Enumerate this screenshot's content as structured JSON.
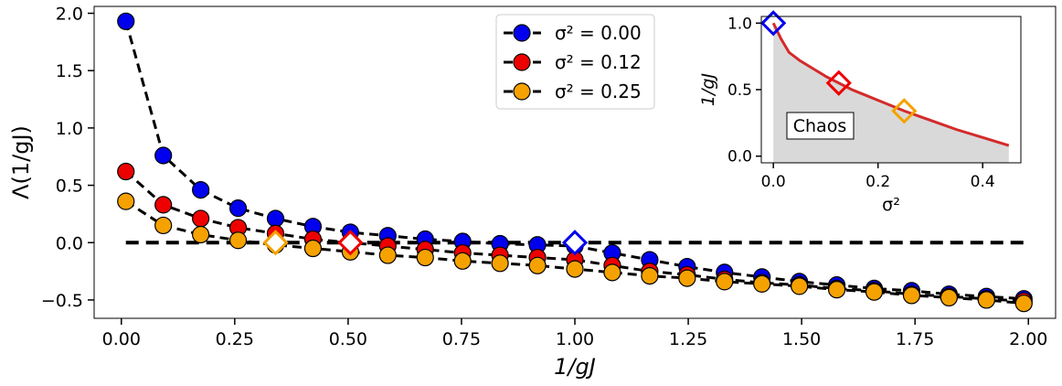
{
  "chart_data": [
    {
      "type": "line",
      "xlabel": "1/gJ",
      "ylabel": "Λ(1/gJ)",
      "xlim": [
        -0.06,
        2.06
      ],
      "ylim": [
        -0.66,
        2.06
      ],
      "xticks": [
        "0.00",
        "0.25",
        "0.50",
        "0.75",
        "1.00",
        "1.25",
        "1.50",
        "1.75",
        "2.00"
      ],
      "xtick_values": [
        0,
        0.25,
        0.5,
        0.75,
        1.0,
        1.25,
        1.5,
        1.75,
        2.0
      ],
      "yticks": [
        "−0.5",
        "0.0",
        "0.5",
        "1.0",
        "1.5",
        "2.0"
      ],
      "ytick_values": [
        -0.5,
        0,
        0.5,
        1.0,
        1.5,
        2.0
      ],
      "grid": false,
      "legend_position": "top-center",
      "x": [
        0.01,
        0.0925,
        0.175,
        0.2575,
        0.34,
        0.4225,
        0.505,
        0.5875,
        0.67,
        0.7525,
        0.835,
        0.9175,
        1.0,
        1.0825,
        1.165,
        1.2475,
        1.33,
        1.4125,
        1.495,
        1.5775,
        1.66,
        1.7425,
        1.825,
        1.9075,
        1.99
      ],
      "series": [
        {
          "name": "σ² = 0.00",
          "color": "#0000ee",
          "values": [
            1.93,
            0.76,
            0.46,
            0.3,
            0.21,
            0.14,
            0.09,
            0.06,
            0.03,
            0.01,
            -0.01,
            -0.02,
            -0.03,
            -0.09,
            -0.15,
            -0.21,
            -0.26,
            -0.3,
            -0.34,
            -0.37,
            -0.4,
            -0.42,
            -0.45,
            -0.47,
            -0.49
          ]
        },
        {
          "name": "σ² = 0.12",
          "color": "#ee0000",
          "values": [
            0.62,
            0.33,
            0.21,
            0.13,
            0.08,
            0.03,
            0.0,
            -0.03,
            -0.06,
            -0.09,
            -0.11,
            -0.13,
            -0.15,
            -0.2,
            -0.25,
            -0.28,
            -0.32,
            -0.35,
            -0.37,
            -0.4,
            -0.42,
            -0.45,
            -0.47,
            -0.49,
            -0.51
          ]
        },
        {
          "name": "σ² = 0.25",
          "color": "#f5a200",
          "values": [
            0.36,
            0.15,
            0.07,
            0.02,
            -0.02,
            -0.05,
            -0.08,
            -0.11,
            -0.13,
            -0.16,
            -0.18,
            -0.2,
            -0.23,
            -0.26,
            -0.29,
            -0.31,
            -0.34,
            -0.36,
            -0.38,
            -0.41,
            -0.43,
            -0.46,
            -0.48,
            -0.5,
            -0.53
          ]
        }
      ],
      "zero_line": {
        "x_range": [
          0.01,
          2.0
        ],
        "y": 0
      },
      "transition_markers": [
        {
          "x": 1.0,
          "y": 0,
          "color": "#0000ee"
        },
        {
          "x": 0.505,
          "y": 0,
          "color": "#ee0000"
        },
        {
          "x": 0.34,
          "y": 0,
          "color": "#f5a200"
        }
      ]
    },
    {
      "type": "area",
      "xlabel": "σ²",
      "ylabel": "1/gJ",
      "xlim": [
        -0.023,
        0.473
      ],
      "ylim": [
        -0.05,
        1.05
      ],
      "xticks": [
        "0.0",
        "0.2",
        "0.4"
      ],
      "xtick_values": [
        0,
        0.2,
        0.4
      ],
      "yticks": [
        "0.0",
        "0.5",
        "1.0"
      ],
      "ytick_values": [
        0,
        0.5,
        1.0
      ],
      "legend_position": "none",
      "region_label": "Chaos",
      "boundary": {
        "color": "#d42a2a",
        "x": [
          0.0,
          0.015,
          0.03,
          0.05,
          0.075,
          0.1,
          0.125,
          0.15,
          0.175,
          0.2,
          0.25,
          0.3,
          0.35,
          0.4,
          0.45
        ],
        "values": [
          1.0,
          0.88,
          0.78,
          0.72,
          0.66,
          0.6,
          0.55,
          0.5,
          0.46,
          0.42,
          0.34,
          0.27,
          0.2,
          0.14,
          0.08
        ]
      },
      "shade_color": "#d9d9d9",
      "markers": [
        {
          "x": 0.0,
          "y": 1.0,
          "color": "#0000ee"
        },
        {
          "x": 0.125,
          "y": 0.55,
          "color": "#ee0000"
        },
        {
          "x": 0.25,
          "y": 0.34,
          "color": "#f5a200"
        }
      ]
    }
  ]
}
